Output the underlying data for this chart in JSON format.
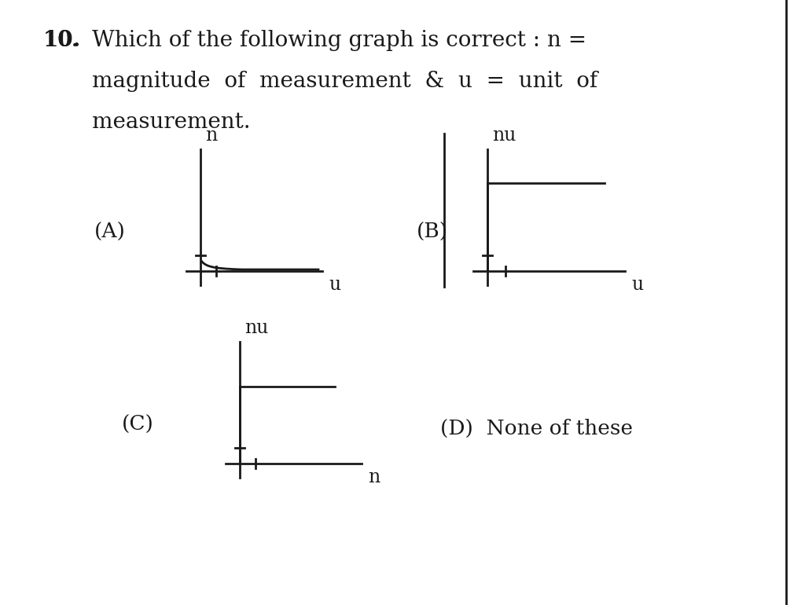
{
  "background_color": "#ffffff",
  "question_line1": "10.  Which of the following graph is correct : n =",
  "question_line2": "       magnitude  of  measurement  &  u  =  unit  of",
  "question_line3": "       measurement.",
  "question_fontsize": 20,
  "graph_A_label": "(A)",
  "graph_A_x_label": "u",
  "graph_A_y_label": "n",
  "graph_B_label": "(B)",
  "graph_B_x_label": "u",
  "graph_B_y_label": "nu",
  "graph_C_label": "(C)",
  "graph_C_x_label": "n",
  "graph_C_y_label": "nu",
  "graph_D_label": "(D)",
  "graph_D_text": "None of these",
  "line_color": "#1a1a1a",
  "text_color": "#1a1a1a",
  "font_family": "DejaVu Serif",
  "label_fontsize": 19,
  "axis_label_fontsize": 17,
  "border_color": "#1a1a1a",
  "lw": 2.0
}
